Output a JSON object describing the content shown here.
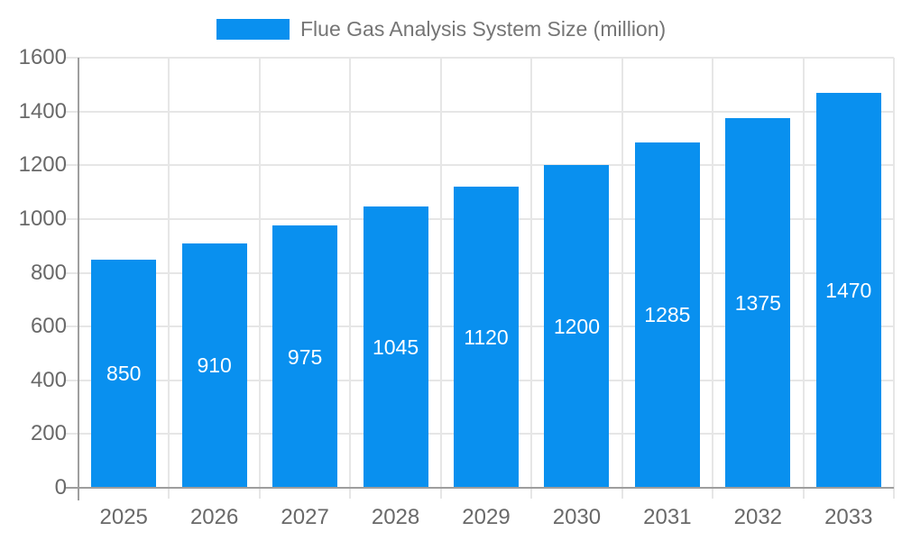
{
  "chart_data": {
    "type": "bar",
    "title": "Flue Gas Analysis System Size (million)",
    "categories": [
      "2025",
      "2026",
      "2027",
      "2028",
      "2029",
      "2030",
      "2031",
      "2032",
      "2033"
    ],
    "values": [
      850,
      910,
      975,
      1045,
      1120,
      1200,
      1285,
      1375,
      1470
    ],
    "series": [
      {
        "name": "Flue Gas Analysis System Size (million)",
        "values": [
          850,
          910,
          975,
          1045,
          1120,
          1200,
          1285,
          1375,
          1470
        ]
      }
    ],
    "xlabel": "",
    "ylabel": "",
    "ylim": [
      0,
      1600
    ],
    "ytick_step": 200,
    "yticks": [
      0,
      200,
      400,
      600,
      800,
      1000,
      1200,
      1400,
      1600
    ],
    "grid": true,
    "legend_position": "top-center",
    "bar_labels": "inside-center"
  },
  "colors": {
    "bar": "#0990ef",
    "grid": "#e6e6e6",
    "axis": "#9e9e9e",
    "tick_label": "#696969",
    "legend_text": "#757575",
    "bar_label": "#ffffff",
    "background": "#ffffff"
  }
}
